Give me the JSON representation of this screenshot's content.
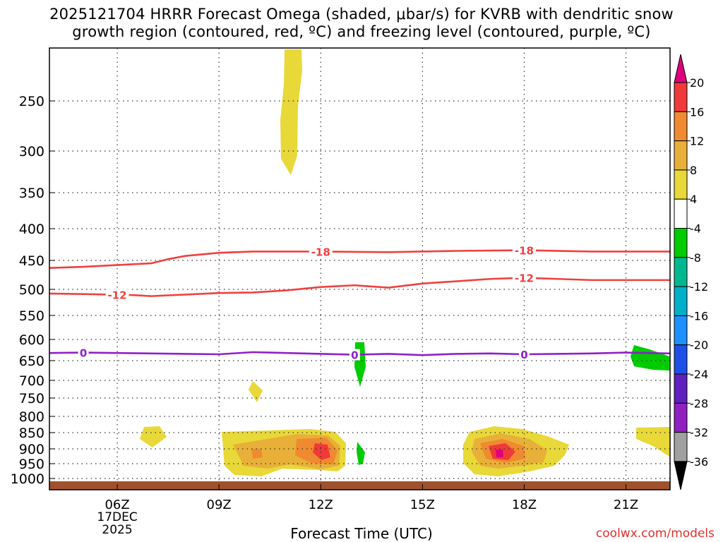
{
  "title_line1": "2025121704 HRRR Forecast Omega (shaded, μbar/s) for KVRB with dendritic snow",
  "title_line2": "growth region (contoured, red, ºC) and freezing level (contoured, purple, ºC)",
  "credit": "coolwx.com/models",
  "chart_data": {
    "type": "time-height contour",
    "xlabel": "Forecast Time (UTC)",
    "x_range_hours": [
      4,
      22.3
    ],
    "y_range_hpa": [
      200,
      1020
    ],
    "x_ticks": [
      {
        "hour": 6,
        "label": "06Z",
        "sub1": "17DEC",
        "sub2": "2025"
      },
      {
        "hour": 9,
        "label": "09Z"
      },
      {
        "hour": 12,
        "label": "12Z"
      },
      {
        "hour": 15,
        "label": "15Z"
      },
      {
        "hour": 18,
        "label": "18Z"
      },
      {
        "hour": 21,
        "label": "21Z"
      }
    ],
    "y_ticks": [
      250,
      300,
      350,
      400,
      450,
      500,
      550,
      600,
      650,
      700,
      750,
      800,
      850,
      900,
      950,
      1000
    ],
    "colorbar_levels": [
      "20",
      "16",
      "12",
      "8",
      "4",
      "-4",
      "-8",
      "-12",
      "-16",
      "-20",
      "-24",
      "-28",
      "-32",
      "-36"
    ],
    "colorbar_colors": [
      "#e0007e",
      "#f03a3a",
      "#f08a30",
      "#e8b038",
      "#e8d838",
      "#ffffff",
      "#00cc00",
      "#00b890",
      "#00b0c8",
      "#1e90ff",
      "#1e50e8",
      "#6020c0",
      "#9020c0",
      "#a0a0a0",
      "#000000"
    ],
    "series": [
      {
        "name": "-18",
        "color": "#f04040",
        "points": [
          [
            4,
            463
          ],
          [
            5,
            461
          ],
          [
            6,
            458
          ],
          [
            7,
            455
          ],
          [
            7.5,
            448
          ],
          [
            8,
            443
          ],
          [
            9,
            438
          ],
          [
            10,
            436
          ],
          [
            12,
            436
          ],
          [
            14,
            437
          ],
          [
            16,
            435
          ],
          [
            18,
            434
          ],
          [
            20,
            436
          ],
          [
            22.3,
            436
          ]
        ],
        "labels": [
          {
            "hour": 12,
            "text": "-18"
          },
          {
            "hour": 18,
            "text": "-18"
          }
        ]
      },
      {
        "name": "-12",
        "color": "#f04040",
        "points": [
          [
            4,
            508
          ],
          [
            5,
            509
          ],
          [
            6.5,
            511
          ],
          [
            7,
            513
          ],
          [
            8,
            510
          ],
          [
            9,
            507
          ],
          [
            10,
            506
          ],
          [
            11,
            502
          ],
          [
            12,
            496
          ],
          [
            13,
            493
          ],
          [
            14,
            497
          ],
          [
            15,
            490
          ],
          [
            16,
            486
          ],
          [
            17,
            482
          ],
          [
            18,
            480
          ],
          [
            19,
            482
          ],
          [
            20,
            484
          ],
          [
            22.3,
            484
          ]
        ],
        "labels": [
          {
            "hour": 6,
            "text": "-12"
          },
          {
            "hour": 18,
            "text": "-12"
          }
        ]
      },
      {
        "name": "0",
        "color": "#9020c8",
        "points": [
          [
            4,
            632
          ],
          [
            5,
            631
          ],
          [
            6,
            632
          ],
          [
            7,
            633
          ],
          [
            8,
            634
          ],
          [
            9,
            635
          ],
          [
            10,
            630
          ],
          [
            11,
            632
          ],
          [
            12,
            634
          ],
          [
            13,
            636
          ],
          [
            14,
            634
          ],
          [
            15,
            637
          ],
          [
            16,
            634
          ],
          [
            17,
            633
          ],
          [
            18,
            635
          ],
          [
            19,
            634
          ],
          [
            20,
            633
          ],
          [
            21,
            631
          ],
          [
            22.3,
            633
          ]
        ],
        "labels": [
          {
            "hour": 5,
            "text": "0"
          },
          {
            "hour": 13,
            "text": "0"
          },
          {
            "hour": 18,
            "text": "0"
          }
        ]
      }
    ]
  }
}
